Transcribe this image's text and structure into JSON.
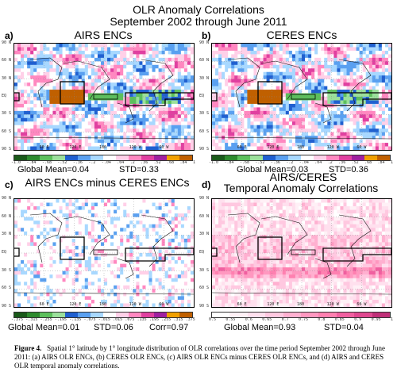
{
  "title": {
    "line1": "OLR Anomaly Correlations",
    "line2": "September 2002 through June 2011"
  },
  "panels": [
    {
      "letter": "a)",
      "title": "AIRS ENCs",
      "stats": {
        "mean": "Global Mean=0.04",
        "std": "STD=0.33",
        "corr": ""
      },
      "colorbar_ticks": [
        "-1.0",
        "-.84",
        "-.68",
        "-.52",
        "-.36",
        "-.2",
        "-.04",
        ".04",
        ".2",
        ".36",
        ".52",
        ".68",
        ".84",
        "1"
      ]
    },
    {
      "letter": "b)",
      "title": "CERES ENCs",
      "stats": {
        "mean": "Global Mean=0.03",
        "std": "STD=0.36",
        "corr": ""
      },
      "colorbar_ticks": [
        "-1.0",
        "-.84",
        "-.68",
        "-.52",
        "-.36",
        "-.2",
        "-.04",
        ".04",
        ".2",
        ".36",
        ".52",
        ".68",
        ".84",
        "1"
      ]
    },
    {
      "letter": "c)",
      "title": "AIRS ENCs minus CERES ENCs",
      "stats": {
        "mean": "Global Mean=0.01",
        "std": "STD=0.06",
        "corr": "Corr=0.97"
      },
      "colorbar_ticks": [
        "-.375",
        "-.315",
        "-.255",
        "-.195",
        "-.135",
        "-.075",
        "-.015",
        ".015",
        ".075",
        ".135",
        ".195",
        ".255",
        ".315",
        ".375"
      ]
    },
    {
      "letter": "d)",
      "title": "AIRS/CERES",
      "title2": "Temporal Anomaly Correlations",
      "stats": {
        "mean": "Global Mean=0.93",
        "std": "STD=0.04",
        "corr": ""
      },
      "colorbar_ticks": [
        "0.5",
        "0.55",
        "0.6",
        "0.65",
        "0.7",
        "0.75",
        "0.8",
        "0.85",
        "0.9",
        "0.95",
        "1"
      ]
    }
  ],
  "lat_labels": [
    "90 N",
    "60 N",
    "30 N",
    "EQ",
    "30 S",
    "60 S",
    "90 S"
  ],
  "lon_labels": [
    "60 E",
    "120 E",
    "180",
    "120 W",
    "60 W"
  ],
  "caption": {
    "label": "Figure 4.",
    "text": "Spatial 1° latitude by 1° longitude distribution of OLR correlations over the time period September 2002 through June 2011: (a) AIRS OLR ENCs, (b) CERES OLR ENCs, (c) AIRS OLR ENCs minus CERES OLR ENCs, and (d) AIRS and CERES OLR temporal anomaly correlations."
  },
  "colors": {
    "diverging": [
      "#1a5a1a",
      "#2e8b2e",
      "#5cc05c",
      "#9be09b",
      "#2060d0",
      "#5aa0f0",
      "#a8d8ff",
      "#ffffff",
      "#ffd0e8",
      "#ff88c0",
      "#e040a0",
      "#a020a0",
      "#f0a000",
      "#c06000"
    ],
    "sequential": [
      "#ffffff",
      "#fff0f6",
      "#ffe0ee",
      "#ffc8e0",
      "#ffb0d0",
      "#ff98c0",
      "#ff80b0",
      "#f060a0",
      "#e04890",
      "#c03078"
    ]
  }
}
